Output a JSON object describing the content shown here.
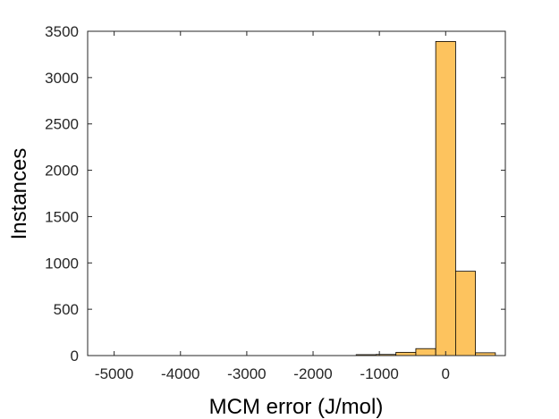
{
  "chart_data": {
    "type": "bar",
    "xlabel": "MCM error (J/mol)",
    "ylabel": "Instances",
    "xlim": [
      -5400,
      900
    ],
    "ylim": [
      0,
      3500
    ],
    "xticks": [
      -5000,
      -4000,
      -3000,
      -2000,
      -1000,
      0
    ],
    "xtick_labels": [
      "-5000",
      "-4000",
      "-3000",
      "-2000",
      "-1000",
      "0"
    ],
    "yticks": [
      0,
      500,
      1000,
      1500,
      2000,
      2500,
      3000,
      3500
    ],
    "ytick_labels": [
      "0",
      "500",
      "1000",
      "1500",
      "2000",
      "2500",
      "3000",
      "3500"
    ],
    "bin_width": 300,
    "bins": [
      {
        "x0": -1350,
        "x1": -1050,
        "count": 10
      },
      {
        "x0": -1050,
        "x1": -750,
        "count": 12
      },
      {
        "x0": -750,
        "x1": -450,
        "count": 35
      },
      {
        "x0": -450,
        "x1": -150,
        "count": 75
      },
      {
        "x0": -150,
        "x1": 150,
        "count": 3390
      },
      {
        "x0": 150,
        "x1": 450,
        "count": 910
      },
      {
        "x0": 450,
        "x1": 750,
        "count": 30
      }
    ],
    "bar_color": "#FDC35E",
    "bar_edge_color": "#000000",
    "grid": false,
    "box": true
  }
}
